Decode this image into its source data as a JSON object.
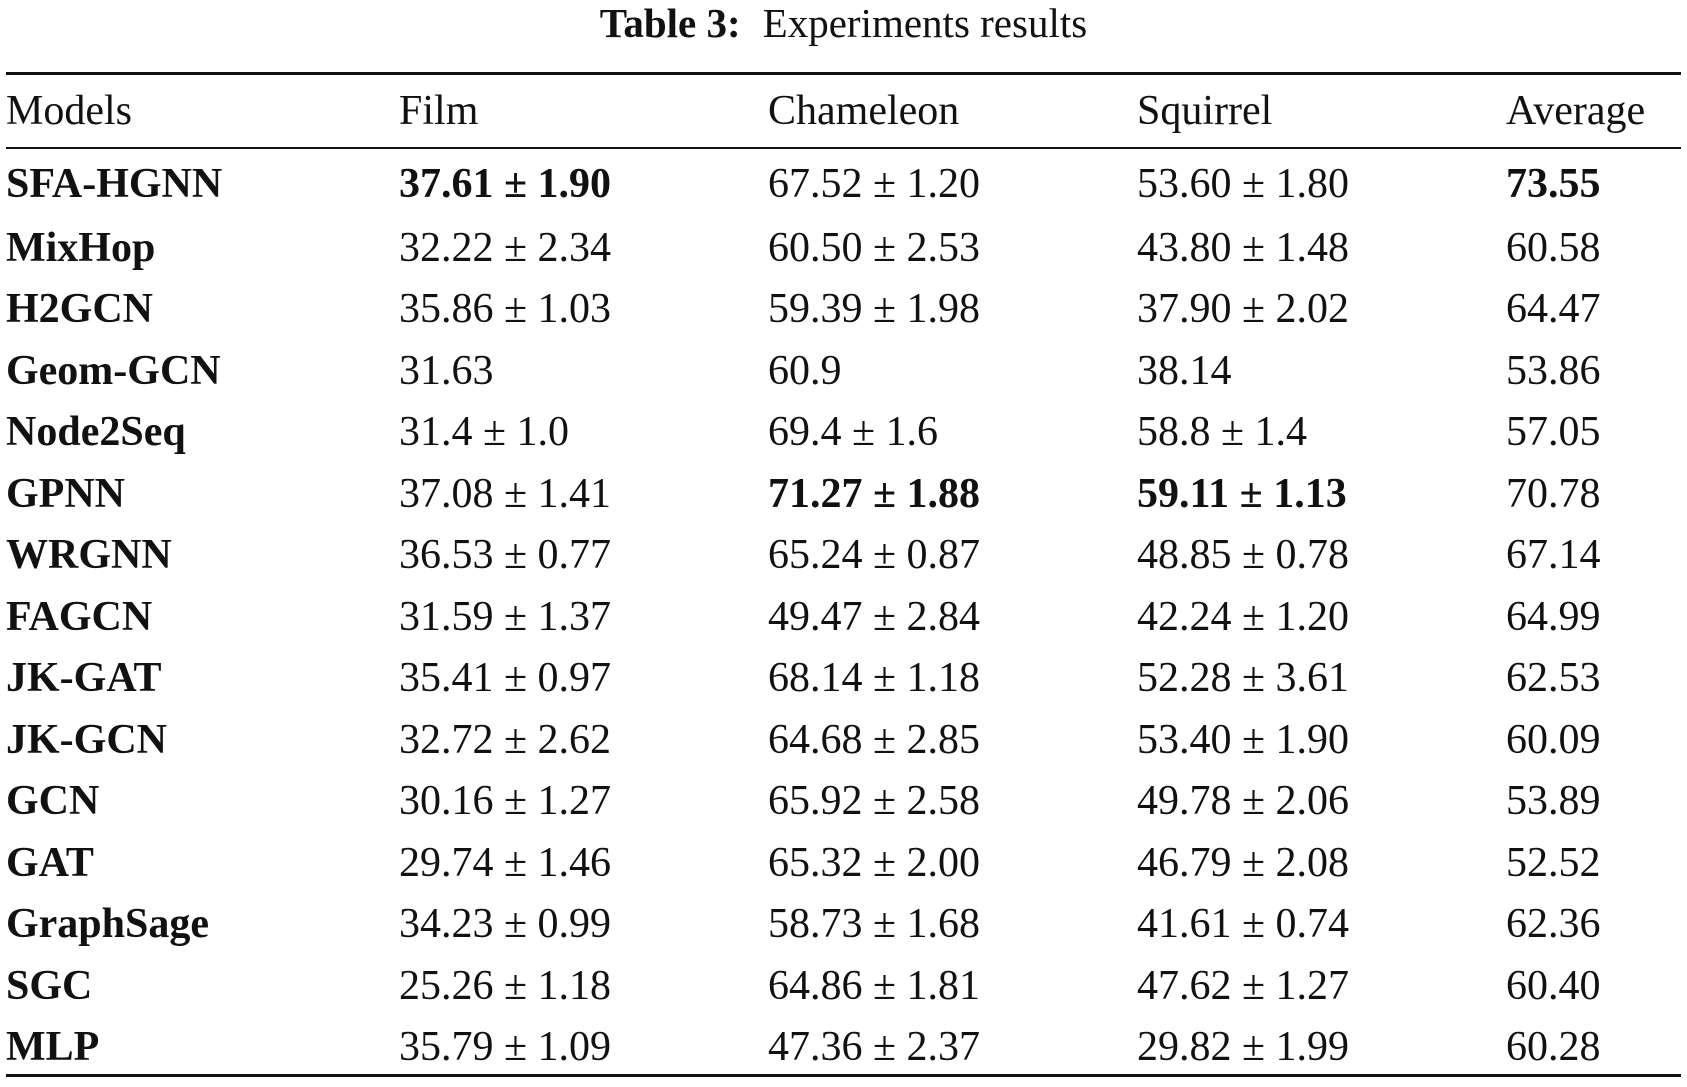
{
  "caption": {
    "label": "Table 3:",
    "text": "Experiments results"
  },
  "table": {
    "headers": [
      "Models",
      "Film",
      "Chameleon",
      "Squirrel",
      "Average"
    ],
    "rows": [
      {
        "model": "SFA-HGNN",
        "film": "37.61 ± 1.90",
        "chameleon": "67.52 ± 1.20",
        "squirrel": "53.60 ± 1.80",
        "average": "73.55",
        "bold": [
          "film",
          "average"
        ]
      },
      {
        "model": "MixHop",
        "film": "32.22 ± 2.34",
        "chameleon": "60.50 ± 2.53",
        "squirrel": "43.80 ± 1.48",
        "average": "60.58",
        "bold": []
      },
      {
        "model": "H2GCN",
        "film": "35.86 ± 1.03",
        "chameleon": "59.39 ± 1.98",
        "squirrel": "37.90 ± 2.02",
        "average": "64.47",
        "bold": []
      },
      {
        "model": "Geom-GCN",
        "film": "31.63",
        "chameleon": "60.9",
        "squirrel": "38.14",
        "average": "53.86",
        "bold": []
      },
      {
        "model": "Node2Seq",
        "film": "31.4 ± 1.0",
        "chameleon": "69.4 ± 1.6",
        "squirrel": "58.8 ± 1.4",
        "average": "57.05",
        "bold": []
      },
      {
        "model": "GPNN",
        "film": "37.08 ± 1.41",
        "chameleon": "71.27 ± 1.88",
        "squirrel": "59.11 ± 1.13",
        "average": "70.78",
        "bold": [
          "chameleon",
          "squirrel"
        ]
      },
      {
        "model": "WRGNN",
        "film": "36.53 ± 0.77",
        "chameleon": "65.24 ± 0.87",
        "squirrel": "48.85 ± 0.78",
        "average": "67.14",
        "bold": []
      },
      {
        "model": "FAGCN",
        "film": "31.59 ± 1.37",
        "chameleon": "49.47 ± 2.84",
        "squirrel": "42.24 ± 1.20",
        "average": "64.99",
        "bold": []
      },
      {
        "model": "JK-GAT",
        "film": "35.41 ± 0.97",
        "chameleon": "68.14 ± 1.18",
        "squirrel": "52.28 ± 3.61",
        "average": "62.53",
        "bold": []
      },
      {
        "model": "JK-GCN",
        "film": "32.72 ± 2.62",
        "chameleon": "64.68 ± 2.85",
        "squirrel": "53.40 ± 1.90",
        "average": "60.09",
        "bold": []
      },
      {
        "model": "GCN",
        "film": "30.16 ± 1.27",
        "chameleon": "65.92 ± 2.58",
        "squirrel": "49.78 ± 2.06",
        "average": "53.89",
        "bold": []
      },
      {
        "model": "GAT",
        "film": "29.74 ± 1.46",
        "chameleon": "65.32 ± 2.00",
        "squirrel": "46.79 ± 2.08",
        "average": "52.52",
        "bold": []
      },
      {
        "model": "GraphSage",
        "film": "34.23 ± 0.99",
        "chameleon": "58.73 ± 1.68",
        "squirrel": "41.61 ± 0.74",
        "average": "62.36",
        "bold": []
      },
      {
        "model": "SGC",
        "film": "25.26 ± 1.18",
        "chameleon": "64.86 ± 1.81",
        "squirrel": "47.62 ± 1.27",
        "average": "60.40",
        "bold": []
      },
      {
        "model": "MLP",
        "film": "35.79 ± 1.09",
        "chameleon": "47.36 ± 2.37",
        "squirrel": "29.82 ± 1.99",
        "average": "60.28",
        "bold": []
      }
    ]
  }
}
